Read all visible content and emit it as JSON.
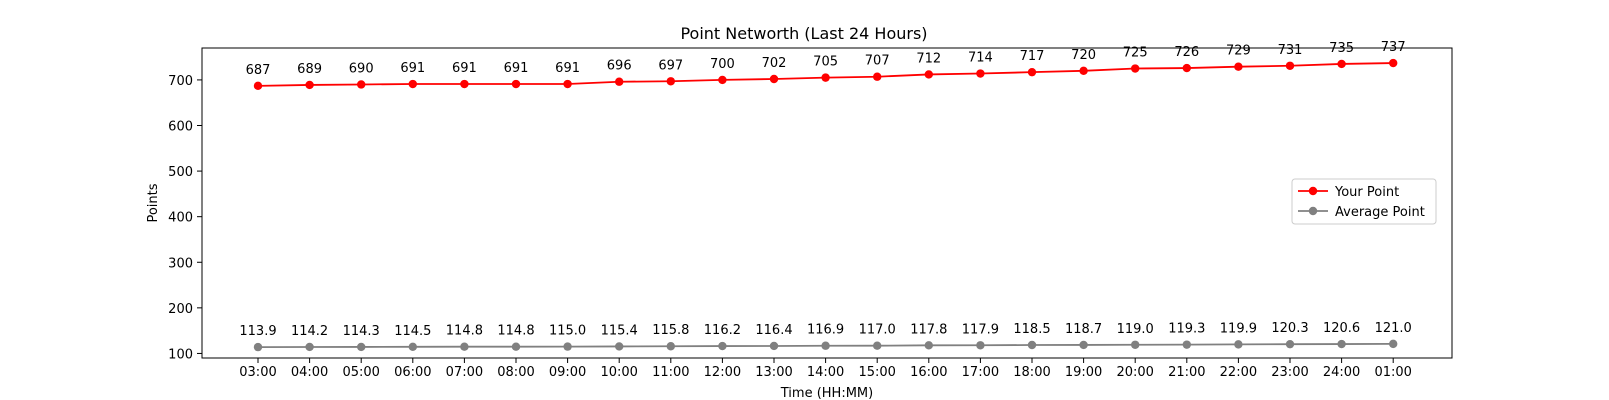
{
  "chart_data": {
    "type": "line",
    "title": "Point Networth (Last 24 Hours)",
    "xlabel": "Time (HH:MM)",
    "ylabel": "Points",
    "ylim": [
      90,
      770
    ],
    "yticks": [
      100,
      200,
      300,
      400,
      500,
      600,
      700
    ],
    "grid": false,
    "legend_position": "center-right",
    "categories": [
      "03:00",
      "04:00",
      "05:00",
      "06:00",
      "07:00",
      "08:00",
      "09:00",
      "10:00",
      "11:00",
      "12:00",
      "13:00",
      "14:00",
      "15:00",
      "16:00",
      "17:00",
      "18:00",
      "19:00",
      "20:00",
      "21:00",
      "22:00",
      "23:00",
      "24:00",
      "01:00"
    ],
    "series": [
      {
        "name": "Your Point",
        "color": "#ff0000",
        "labels": [
          "687",
          "689",
          "690",
          "691",
          "691",
          "691",
          "691",
          "696",
          "697",
          "700",
          "702",
          "705",
          "707",
          "712",
          "714",
          "717",
          "720",
          "725",
          "726",
          "729",
          "731",
          "735",
          "737"
        ],
        "values": [
          687,
          689,
          690,
          691,
          691,
          691,
          691,
          696,
          697,
          700,
          702,
          705,
          707,
          712,
          714,
          717,
          720,
          725,
          726,
          729,
          731,
          735,
          737
        ]
      },
      {
        "name": "Average Point",
        "color": "#808080",
        "labels": [
          "113.9",
          "114.2",
          "114.3",
          "114.5",
          "114.8",
          "114.8",
          "115.0",
          "115.4",
          "115.8",
          "116.2",
          "116.4",
          "116.9",
          "117.0",
          "117.8",
          "117.9",
          "118.5",
          "118.7",
          "119.0",
          "119.3",
          "119.9",
          "120.3",
          "120.6",
          "121.0"
        ],
        "values": [
          113.9,
          114.2,
          114.3,
          114.5,
          114.8,
          114.8,
          115.0,
          115.4,
          115.8,
          116.2,
          116.4,
          116.9,
          117.0,
          117.8,
          117.9,
          118.5,
          118.7,
          119.0,
          119.3,
          119.9,
          120.3,
          120.6,
          121.0
        ]
      }
    ]
  }
}
